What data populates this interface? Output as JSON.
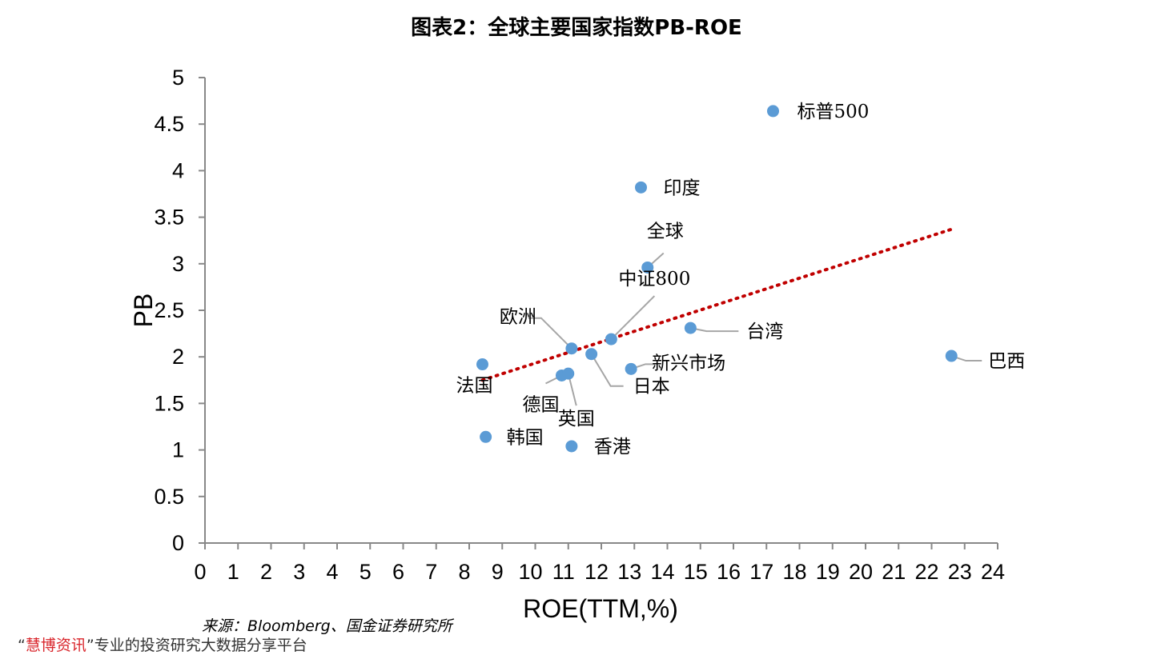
{
  "title": "图表2：全球主要国家指数PB-ROE",
  "source": "来源：Bloomberg、国金证券研究所",
  "footer": {
    "open_quote": "“",
    "brand": "慧博资讯",
    "close_quote": "”",
    "text": "专业的投资研究大数据分享平台"
  },
  "colors": {
    "point": "#5b9bd5",
    "trend": "#c00000",
    "axis": "#888888",
    "leader": "#a6a6a6"
  },
  "chart_data": {
    "type": "scatter",
    "xlabel": "ROE(TTM,%)",
    "ylabel": "PB",
    "xlim": [
      0,
      24
    ],
    "ylim": [
      0,
      5
    ],
    "xticks": [
      "0",
      "1",
      "2",
      "3",
      "4",
      "5",
      "6",
      "7",
      "8",
      "9",
      "10",
      "11",
      "12",
      "13",
      "14",
      "15",
      "16",
      "17",
      "18",
      "19",
      "20",
      "21",
      "22",
      "23",
      "24"
    ],
    "yticks": [
      "0",
      "0.5",
      "1",
      "1.5",
      "2",
      "2.5",
      "3",
      "3.5",
      "4",
      "4.5",
      "5"
    ],
    "grid": false,
    "trendline": {
      "style": "dotted",
      "x": [
        8.4,
        22.6
      ],
      "y": [
        1.75,
        3.37
      ]
    },
    "points": [
      {
        "label": "标普500",
        "x": 17.2,
        "y": 4.64
      },
      {
        "label": "印度",
        "x": 13.2,
        "y": 3.82
      },
      {
        "label": "全球",
        "x": 13.4,
        "y": 2.96
      },
      {
        "label": "中证800",
        "x": 12.3,
        "y": 2.19
      },
      {
        "label": "欧洲",
        "x": 11.1,
        "y": 2.09
      },
      {
        "label": "台湾",
        "x": 14.7,
        "y": 2.31
      },
      {
        "label": "巴西",
        "x": 22.6,
        "y": 2.01
      },
      {
        "label": "日本",
        "x": 11.7,
        "y": 2.03
      },
      {
        "label": "新兴市场",
        "x": 12.9,
        "y": 1.87
      },
      {
        "label": "法国",
        "x": 8.4,
        "y": 1.92
      },
      {
        "label": "德国",
        "x": 10.8,
        "y": 1.8
      },
      {
        "label": "英国",
        "x": 11.0,
        "y": 1.82
      },
      {
        "label": "韩国",
        "x": 8.5,
        "y": 1.14
      },
      {
        "label": "香港",
        "x": 11.1,
        "y": 1.04
      }
    ]
  }
}
